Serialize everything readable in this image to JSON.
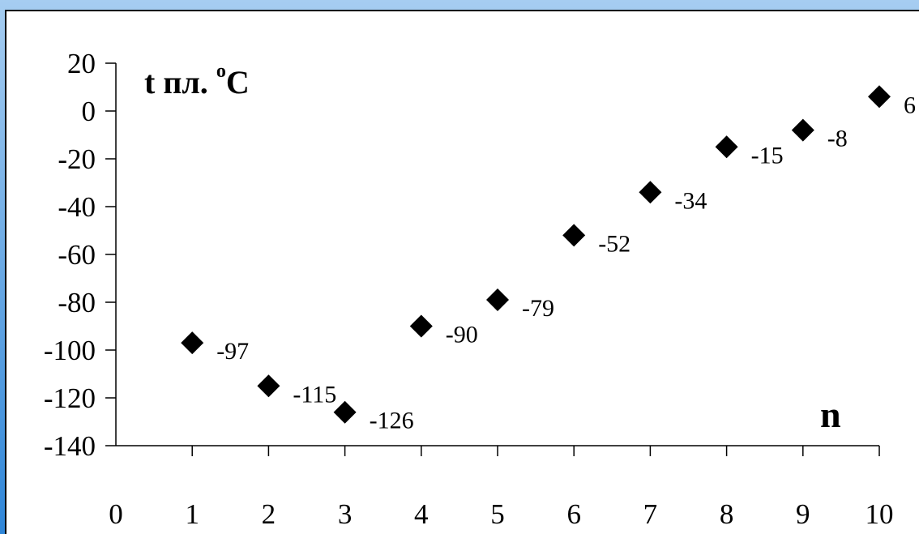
{
  "colors": {
    "frame_gradient_top": "#a6cdf1",
    "frame_gradient_bottom": "#2f86d8",
    "plot_background": "#ffffff",
    "marker": "#000000",
    "axis": "#000000"
  },
  "chart_data": {
    "type": "scatter",
    "x": [
      1,
      2,
      3,
      4,
      5,
      6,
      7,
      8,
      9,
      10
    ],
    "y": [
      -97,
      -115,
      -126,
      -90,
      -79,
      -52,
      -34,
      -15,
      -8,
      6
    ],
    "point_labels": [
      "-97",
      "-115",
      "-126",
      "-90",
      "-79",
      "-52",
      "-34",
      "-15",
      "-8",
      "6"
    ],
    "xlim": [
      0,
      10
    ],
    "ylim": [
      -140,
      20
    ],
    "x_ticks": [
      "0",
      "1",
      "2",
      "3",
      "4",
      "5",
      "6",
      "7",
      "8",
      "9",
      "10"
    ],
    "y_ticks": [
      "20",
      "0",
      "-20",
      "-40",
      "-60",
      "-80",
      "-100",
      "-120",
      "-140"
    ],
    "ylabel_main": "t пл. ",
    "ylabel_super": "o",
    "ylabel_unit": "C",
    "xlabel": "n",
    "marker": "diamond",
    "grid": false,
    "legend": "none"
  }
}
